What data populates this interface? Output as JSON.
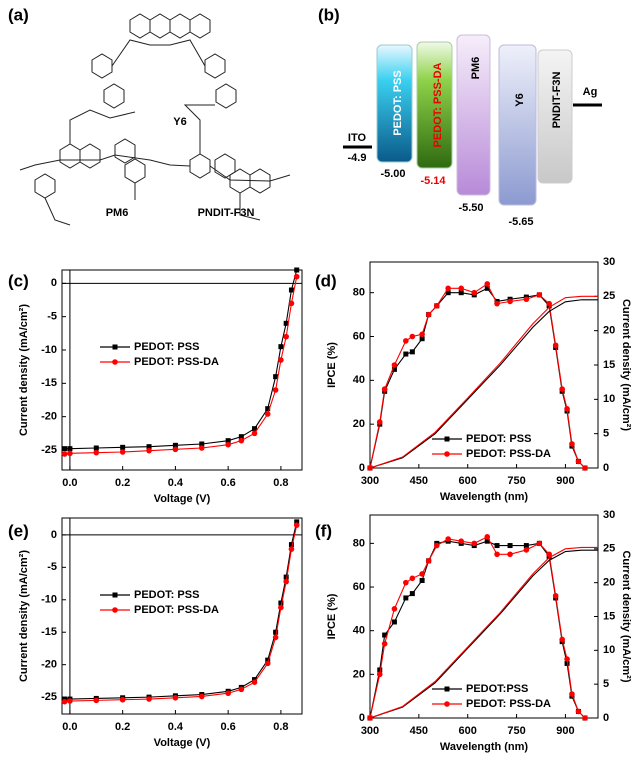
{
  "panel_labels": [
    "(a)",
    "(b)",
    "(c)",
    "(d)",
    "(e)",
    "(f)"
  ],
  "structures": {
    "labels": [
      "Y6",
      "PM6",
      "PNDIT-F3N"
    ]
  },
  "energy_levels": [
    {
      "name": "ITO",
      "value": "-4.9"
    },
    {
      "name": "PEDOT: PSS",
      "value": "-5.00"
    },
    {
      "name": "PEDOT: PSS-DA",
      "value": "-5.14"
    },
    {
      "name": "PM6",
      "value": "-5.50"
    },
    {
      "name": "Y6",
      "value": "-5.65"
    },
    {
      "name": "PNDIT-F3N"
    },
    {
      "name": "Ag"
    }
  ],
  "chart_data": [
    {
      "type": "line",
      "xlabel": "Voltage (V)",
      "ylabel": "Current density (mA/cm²)",
      "xlim": [
        -0.03,
        0.88
      ],
      "ylim": [
        -28,
        2
      ],
      "xticks": [
        {
          "value": 0,
          "label": "0.0"
        },
        0.2,
        0.4,
        0.6,
        0.8
      ],
      "yticks": [
        -25,
        -20,
        -15,
        -10,
        -5,
        0
      ],
      "zero_lines": true,
      "legend_position": "center-left",
      "series": [
        {
          "name": "PEDOT: PSS",
          "color": "#000000",
          "marker": "square",
          "x": [
            -0.02,
            0,
            0.1,
            0.2,
            0.3,
            0.4,
            0.5,
            0.6,
            0.65,
            0.7,
            0.75,
            0.78,
            0.8,
            0.82,
            0.84,
            0.86
          ],
          "values": [
            -24.8,
            -24.8,
            -24.7,
            -24.6,
            -24.5,
            -24.3,
            -24.1,
            -23.6,
            -23.0,
            -21.8,
            -18.8,
            -14,
            -9.5,
            -6,
            -1,
            2
          ]
        },
        {
          "name": "PEDOT: PSS-DA",
          "color": "#ff0000",
          "marker": "circle",
          "x": [
            -0.02,
            0,
            0.1,
            0.2,
            0.3,
            0.4,
            0.5,
            0.6,
            0.65,
            0.7,
            0.75,
            0.78,
            0.8,
            0.82,
            0.84,
            0.86
          ],
          "values": [
            -25.6,
            -25.5,
            -25.4,
            -25.3,
            -25.1,
            -24.9,
            -24.7,
            -24.2,
            -23.6,
            -22.5,
            -19.6,
            -16,
            -11.5,
            -8,
            -3,
            1
          ]
        }
      ]
    },
    {
      "type": "line",
      "xlabel": "Wavelength (nm)",
      "ylabel": "IPCE (%)",
      "y2label": "Current density (mA/cm²)",
      "xlim": [
        300,
        1000
      ],
      "ylim": [
        0,
        94
      ],
      "y2lim": [
        0,
        30
      ],
      "xticks": [
        300,
        450,
        600,
        750,
        900
      ],
      "yticks": [
        0,
        20,
        40,
        60,
        80
      ],
      "y2ticks": [
        0,
        5,
        10,
        15,
        20,
        25,
        30
      ],
      "legend_position": "lower-right",
      "series": [
        {
          "name": "PEDOT: PSS",
          "color": "#000000",
          "marker": "square",
          "x": [
            300,
            330,
            345,
            375,
            410,
            430,
            460,
            480,
            505,
            540,
            580,
            620,
            660,
            690,
            730,
            780,
            820,
            850,
            870,
            890,
            905,
            920,
            940,
            960
          ],
          "values": [
            0,
            20,
            35,
            45,
            52,
            53,
            59,
            70,
            74,
            80,
            80,
            79,
            82,
            76,
            77,
            78,
            79,
            74,
            55,
            35,
            26,
            10,
            3,
            0
          ]
        },
        {
          "name": "PEDOT: PSS-DA",
          "color": "#ff0000",
          "marker": "circle",
          "x": [
            300,
            330,
            345,
            375,
            410,
            430,
            460,
            480,
            505,
            540,
            580,
            620,
            660,
            690,
            730,
            780,
            820,
            850,
            870,
            890,
            905,
            920,
            940,
            960
          ],
          "values": [
            0,
            21,
            36,
            47,
            58,
            60,
            61,
            70,
            74,
            82,
            82,
            80,
            84,
            75,
            76,
            77,
            79,
            75,
            56,
            36,
            27,
            11,
            3,
            0
          ]
        },
        {
          "color": "#000000",
          "axis": "y2",
          "x": [
            300,
            400,
            500,
            600,
            700,
            800,
            850,
            900,
            950,
            1000
          ],
          "values": [
            0,
            1.5,
            5,
            10,
            15,
            20.5,
            22.8,
            24.2,
            24.5,
            24.5
          ]
        },
        {
          "color": "#ff0000",
          "axis": "y2",
          "x": [
            300,
            400,
            500,
            600,
            700,
            800,
            850,
            900,
            950,
            1000
          ],
          "values": [
            0,
            1.6,
            5.2,
            10.2,
            15.3,
            21,
            23.4,
            24.8,
            25,
            25
          ]
        }
      ]
    },
    {
      "type": "line",
      "xlabel": "Voltage (V)",
      "ylabel": "Current density (mA/cm²)",
      "xlim": [
        -0.03,
        0.88
      ],
      "ylim": [
        -27.6,
        2.6
      ],
      "xticks": [
        {
          "value": 0,
          "label": "0.0"
        },
        0.2,
        0.4,
        0.6,
        0.8
      ],
      "yticks": [
        -25,
        -20,
        -15,
        -10,
        -5,
        0
      ],
      "zero_lines": true,
      "legend_position": "center-left",
      "series": [
        {
          "name": "PEDOT: PSS",
          "color": "#000000",
          "marker": "square",
          "x": [
            -0.02,
            0,
            0.1,
            0.2,
            0.3,
            0.4,
            0.5,
            0.6,
            0.65,
            0.7,
            0.75,
            0.78,
            0.8,
            0.82,
            0.84,
            0.86
          ],
          "values": [
            -25.3,
            -25.3,
            -25.2,
            -25.1,
            -25.0,
            -24.8,
            -24.6,
            -24.1,
            -23.5,
            -22.3,
            -19.3,
            -15,
            -10.5,
            -6.5,
            -1.5,
            2
          ]
        },
        {
          "name": "PEDOT: PSS-DA",
          "color": "#ff0000",
          "marker": "circle",
          "x": [
            -0.02,
            0,
            0.1,
            0.2,
            0.3,
            0.4,
            0.5,
            0.6,
            0.65,
            0.7,
            0.75,
            0.78,
            0.8,
            0.82,
            0.84,
            0.86
          ],
          "values": [
            -25.7,
            -25.6,
            -25.5,
            -25.4,
            -25.3,
            -25.1,
            -24.9,
            -24.4,
            -23.8,
            -22.7,
            -19.8,
            -15.8,
            -11.2,
            -7.2,
            -2.2,
            1.5
          ]
        }
      ]
    },
    {
      "type": "line",
      "xlabel": "Wavelength (nm)",
      "ylabel": "IPCE (%)",
      "y2label": "Current density (mA/cm²)",
      "xlim": [
        300,
        1000
      ],
      "ylim": [
        0,
        93
      ],
      "y2lim": [
        0,
        30
      ],
      "xticks": [
        300,
        450,
        600,
        750,
        900
      ],
      "yticks": [
        0,
        20,
        40,
        60,
        80
      ],
      "y2ticks": [
        0,
        5,
        10,
        15,
        20,
        25,
        30
      ],
      "legend_position": "lower-right",
      "series": [
        {
          "name": "PEDOT:PSS",
          "color": "#000000",
          "marker": "square",
          "x": [
            300,
            330,
            345,
            375,
            410,
            430,
            460,
            480,
            505,
            540,
            580,
            620,
            660,
            690,
            730,
            780,
            820,
            850,
            870,
            890,
            905,
            920,
            940,
            960
          ],
          "values": [
            0,
            22,
            38,
            44,
            55,
            57,
            63,
            72,
            80,
            81,
            80,
            79,
            81,
            79,
            79,
            79,
            80,
            74,
            55,
            35,
            25,
            10,
            3,
            0
          ]
        },
        {
          "name": "PEDOT: PSS-DA",
          "color": "#ff0000",
          "marker": "circle",
          "x": [
            300,
            330,
            345,
            375,
            410,
            430,
            460,
            480,
            505,
            540,
            580,
            620,
            660,
            690,
            730,
            780,
            820,
            850,
            870,
            890,
            905,
            920,
            940,
            960
          ],
          "values": [
            0,
            20,
            34,
            50,
            62,
            64,
            66,
            72,
            79,
            82,
            81,
            80,
            83,
            75,
            75,
            77,
            80,
            75,
            56,
            36,
            27,
            11,
            3,
            0
          ]
        },
        {
          "color": "#000000",
          "axis": "y2",
          "x": [
            300,
            400,
            500,
            600,
            700,
            800,
            850,
            900,
            950,
            1000
          ],
          "values": [
            0,
            1.6,
            5.2,
            10.3,
            15.4,
            21,
            23.3,
            24.6,
            24.8,
            24.8
          ]
        },
        {
          "color": "#ff0000",
          "axis": "y2",
          "x": [
            300,
            400,
            500,
            600,
            700,
            800,
            850,
            900,
            950,
            1000
          ],
          "values": [
            0,
            1.7,
            5.4,
            10.5,
            15.6,
            21.3,
            23.7,
            25,
            25.2,
            25.2
          ]
        }
      ]
    }
  ]
}
